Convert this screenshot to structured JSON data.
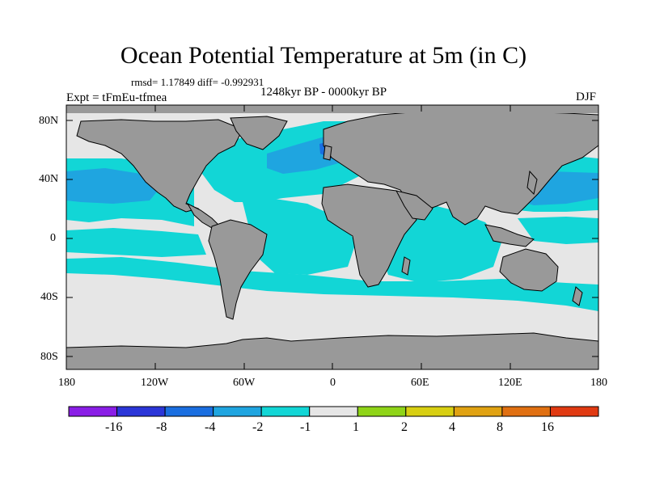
{
  "title": "Ocean Potential Temperature at 5m (in C)",
  "stats": "rmsd= 1.17849 diff= -0.992931",
  "experiment": "Expt = tFmEu-tfmea",
  "period": "1248kyr BP - 0000kyr BP",
  "season": "DJF",
  "axes": {
    "y_ticks": [
      "80N",
      "40N",
      "0",
      "40S",
      "80S"
    ],
    "x_ticks": [
      "180",
      "120W",
      "60W",
      "0",
      "60E",
      "120E",
      "180"
    ]
  },
  "colorbar": {
    "labels": [
      "-16",
      "-8",
      "-4",
      "-2",
      "-1",
      "1",
      "2",
      "4",
      "8",
      "16"
    ],
    "colors": [
      "#8a1ee6",
      "#2b36d8",
      "#1a6ee0",
      "#1fa5e0",
      "#12d6d6",
      "#e6e6e6",
      "#8fd418",
      "#d8cf12",
      "#e0a212",
      "#e07012",
      "#e03a12"
    ]
  },
  "map_colors": {
    "land": "#999999",
    "ocean_neutral": "#e6e6e6",
    "cyan": "#12d6d6",
    "light_blue": "#1fa5e0",
    "mid_blue": "#1a6ee0"
  }
}
